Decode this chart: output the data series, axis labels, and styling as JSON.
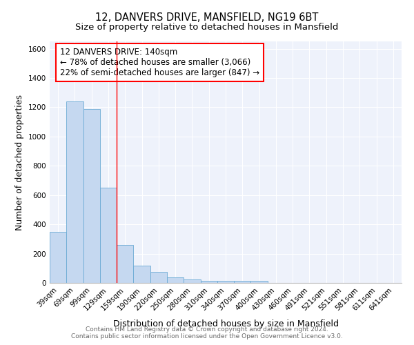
{
  "title1": "12, DANVERS DRIVE, MANSFIELD, NG19 6BT",
  "title2": "Size of property relative to detached houses in Mansfield",
  "xlabel": "Distribution of detached houses by size in Mansfield",
  "ylabel": "Number of detached properties",
  "categories": [
    "39sqm",
    "69sqm",
    "99sqm",
    "129sqm",
    "159sqm",
    "190sqm",
    "220sqm",
    "250sqm",
    "280sqm",
    "310sqm",
    "340sqm",
    "370sqm",
    "400sqm",
    "430sqm",
    "460sqm",
    "491sqm",
    "521sqm",
    "551sqm",
    "581sqm",
    "611sqm",
    "641sqm"
  ],
  "values": [
    350,
    1240,
    1190,
    650,
    260,
    120,
    75,
    40,
    25,
    15,
    15,
    15,
    15,
    0,
    0,
    0,
    0,
    0,
    0,
    0,
    0
  ],
  "bar_color": "#c5d8f0",
  "bar_edge_color": "#6aaad4",
  "annotation_line1": "12 DANVERS DRIVE: 140sqm",
  "annotation_line2": "← 78% of detached houses are smaller (3,066)",
  "annotation_line3": "22% of semi-detached houses are larger (847) →",
  "annotation_box_color": "white",
  "annotation_box_edge": "red",
  "ylim": [
    0,
    1650
  ],
  "yticks": [
    0,
    200,
    400,
    600,
    800,
    1000,
    1200,
    1400,
    1600
  ],
  "footer": "Contains HM Land Registry data © Crown copyright and database right 2024.\nContains public sector information licensed under the Open Government Licence v3.0.",
  "bg_color": "#eef2fb",
  "grid_color": "white",
  "title_fontsize": 10.5,
  "subtitle_fontsize": 9.5,
  "axis_label_fontsize": 9,
  "tick_fontsize": 7.5,
  "annot_fontsize": 8.5,
  "footer_fontsize": 6.5
}
